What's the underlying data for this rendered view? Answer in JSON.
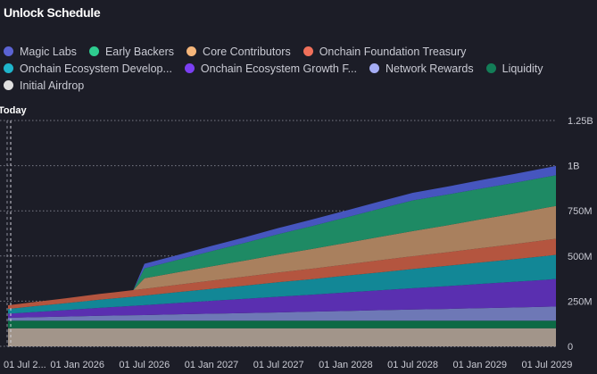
{
  "title": "Unlock Schedule",
  "today_label": "Today",
  "legend": [
    {
      "label": "Magic Labs",
      "color": "#5b63d3"
    },
    {
      "label": "Early Backers",
      "color": "#2ecc8f"
    },
    {
      "label": "Core Contributors",
      "color": "#f5b57a"
    },
    {
      "label": "Onchain Foundation Treasury",
      "color": "#f0705a"
    },
    {
      "label": "Onchain Ecosystem Develop...",
      "color": "#1fb5cc"
    },
    {
      "label": "Onchain Ecosystem Growth F...",
      "color": "#7b3ff2"
    },
    {
      "label": "Network Rewards",
      "color": "#a5adf5"
    },
    {
      "label": "Liquidity",
      "color": "#137d57"
    },
    {
      "label": "Initial Airdrop",
      "color": "#e0e0e0"
    }
  ],
  "chart_data": {
    "type": "area",
    "stacked": true,
    "title": "Unlock Schedule",
    "y_axis_position": "right",
    "ylim": [
      0,
      1250000000
    ],
    "y_ticks": [
      {
        "value": 0,
        "label": "0"
      },
      {
        "value": 250000000,
        "label": "250M"
      },
      {
        "value": 500000000,
        "label": "500M"
      },
      {
        "value": 750000000,
        "label": "750M"
      },
      {
        "value": 1000000000,
        "label": "1B"
      },
      {
        "value": 1250000000,
        "label": "1.25B"
      }
    ],
    "x_ticks": [
      {
        "date": "2025-07",
        "label": "01 Jul 2..."
      },
      {
        "date": "2026-01",
        "label": "01 Jan 2026"
      },
      {
        "date": "2026-07",
        "label": "01 Jul 2026"
      },
      {
        "date": "2027-01",
        "label": "01 Jan 2027"
      },
      {
        "date": "2027-07",
        "label": "01 Jul 2027"
      },
      {
        "date": "2028-01",
        "label": "01 Jan 2028"
      },
      {
        "date": "2028-07",
        "label": "01 Jul 2028"
      },
      {
        "date": "2029-01",
        "label": "01 Jan 2029"
      },
      {
        "date": "2029-07",
        "label": "01 Jul 2029"
      }
    ],
    "today_date": "2025-07",
    "grid": true,
    "legend_position": "top",
    "units": "millions of tokens",
    "x": [
      "2025-06",
      "2025-09",
      "2025-12",
      "2026-03",
      "2026-06",
      "2026-07",
      "2026-10",
      "2027-01",
      "2027-04",
      "2027-07",
      "2027-10",
      "2028-01",
      "2028-04",
      "2028-07",
      "2028-10",
      "2029-01",
      "2029-04",
      "2029-07",
      "2029-08"
    ],
    "series": [
      {
        "name": "Initial Airdrop",
        "color": "#a2958a",
        "values": [
          100,
          100,
          100,
          100,
          100,
          100,
          100,
          100,
          100,
          100,
          100,
          100,
          100,
          100,
          100,
          100,
          100,
          100,
          100
        ]
      },
      {
        "name": "Liquidity",
        "color": "#0c6a45",
        "values": [
          42,
          42,
          42,
          42,
          42,
          42,
          42,
          42,
          42,
          42,
          42,
          42,
          42,
          42,
          42,
          42,
          42,
          42,
          42
        ]
      },
      {
        "name": "Network Rewards",
        "color": "#6e78b6",
        "values": [
          15,
          19,
          23,
          27,
          30,
          31,
          35,
          39,
          42,
          46,
          50,
          54,
          58,
          62,
          65,
          69,
          73,
          77,
          79
        ]
      },
      {
        "name": "Onchain Ecosystem Growth F...",
        "color": "#5a2fb0",
        "values": [
          20,
          28,
          36,
          44,
          52,
          55,
          63,
          71,
          79,
          87,
          94,
          102,
          110,
          118,
          126,
          134,
          142,
          150,
          153
        ]
      },
      {
        "name": "Onchain Ecosystem Develop...",
        "color": "#128796",
        "values": [
          25,
          32,
          38,
          45,
          51,
          53,
          60,
          66,
          73,
          80,
          86,
          93,
          99,
          106,
          112,
          119,
          125,
          132,
          134
        ]
      },
      {
        "name": "Onchain Foundation Treasury",
        "color": "#b4553f",
        "values": [
          19,
          23,
          27,
          32,
          36,
          37,
          41,
          46,
          50,
          54,
          58,
          62,
          67,
          71,
          75,
          79,
          83,
          88,
          89
        ]
      },
      {
        "name": "Core Contributors",
        "color": "#a9805e",
        "values": [
          0,
          0,
          0,
          0,
          0,
          59,
          69,
          79,
          89,
          99,
          109,
          119,
          129,
          139,
          149,
          159,
          169,
          179,
          182
        ]
      },
      {
        "name": "Early Backers",
        "color": "#1e8a64",
        "values": [
          0,
          0,
          0,
          0,
          0,
          55,
          69,
          84,
          98,
          113,
          127,
          141,
          156,
          170,
          170,
          170,
          170,
          170,
          170
        ]
      },
      {
        "name": "Magic Labs",
        "color": "#4656bf",
        "values": [
          0,
          0,
          0,
          0,
          0,
          25,
          27,
          29,
          31,
          34,
          36,
          38,
          40,
          42,
          44,
          47,
          49,
          51,
          52
        ]
      }
    ]
  }
}
